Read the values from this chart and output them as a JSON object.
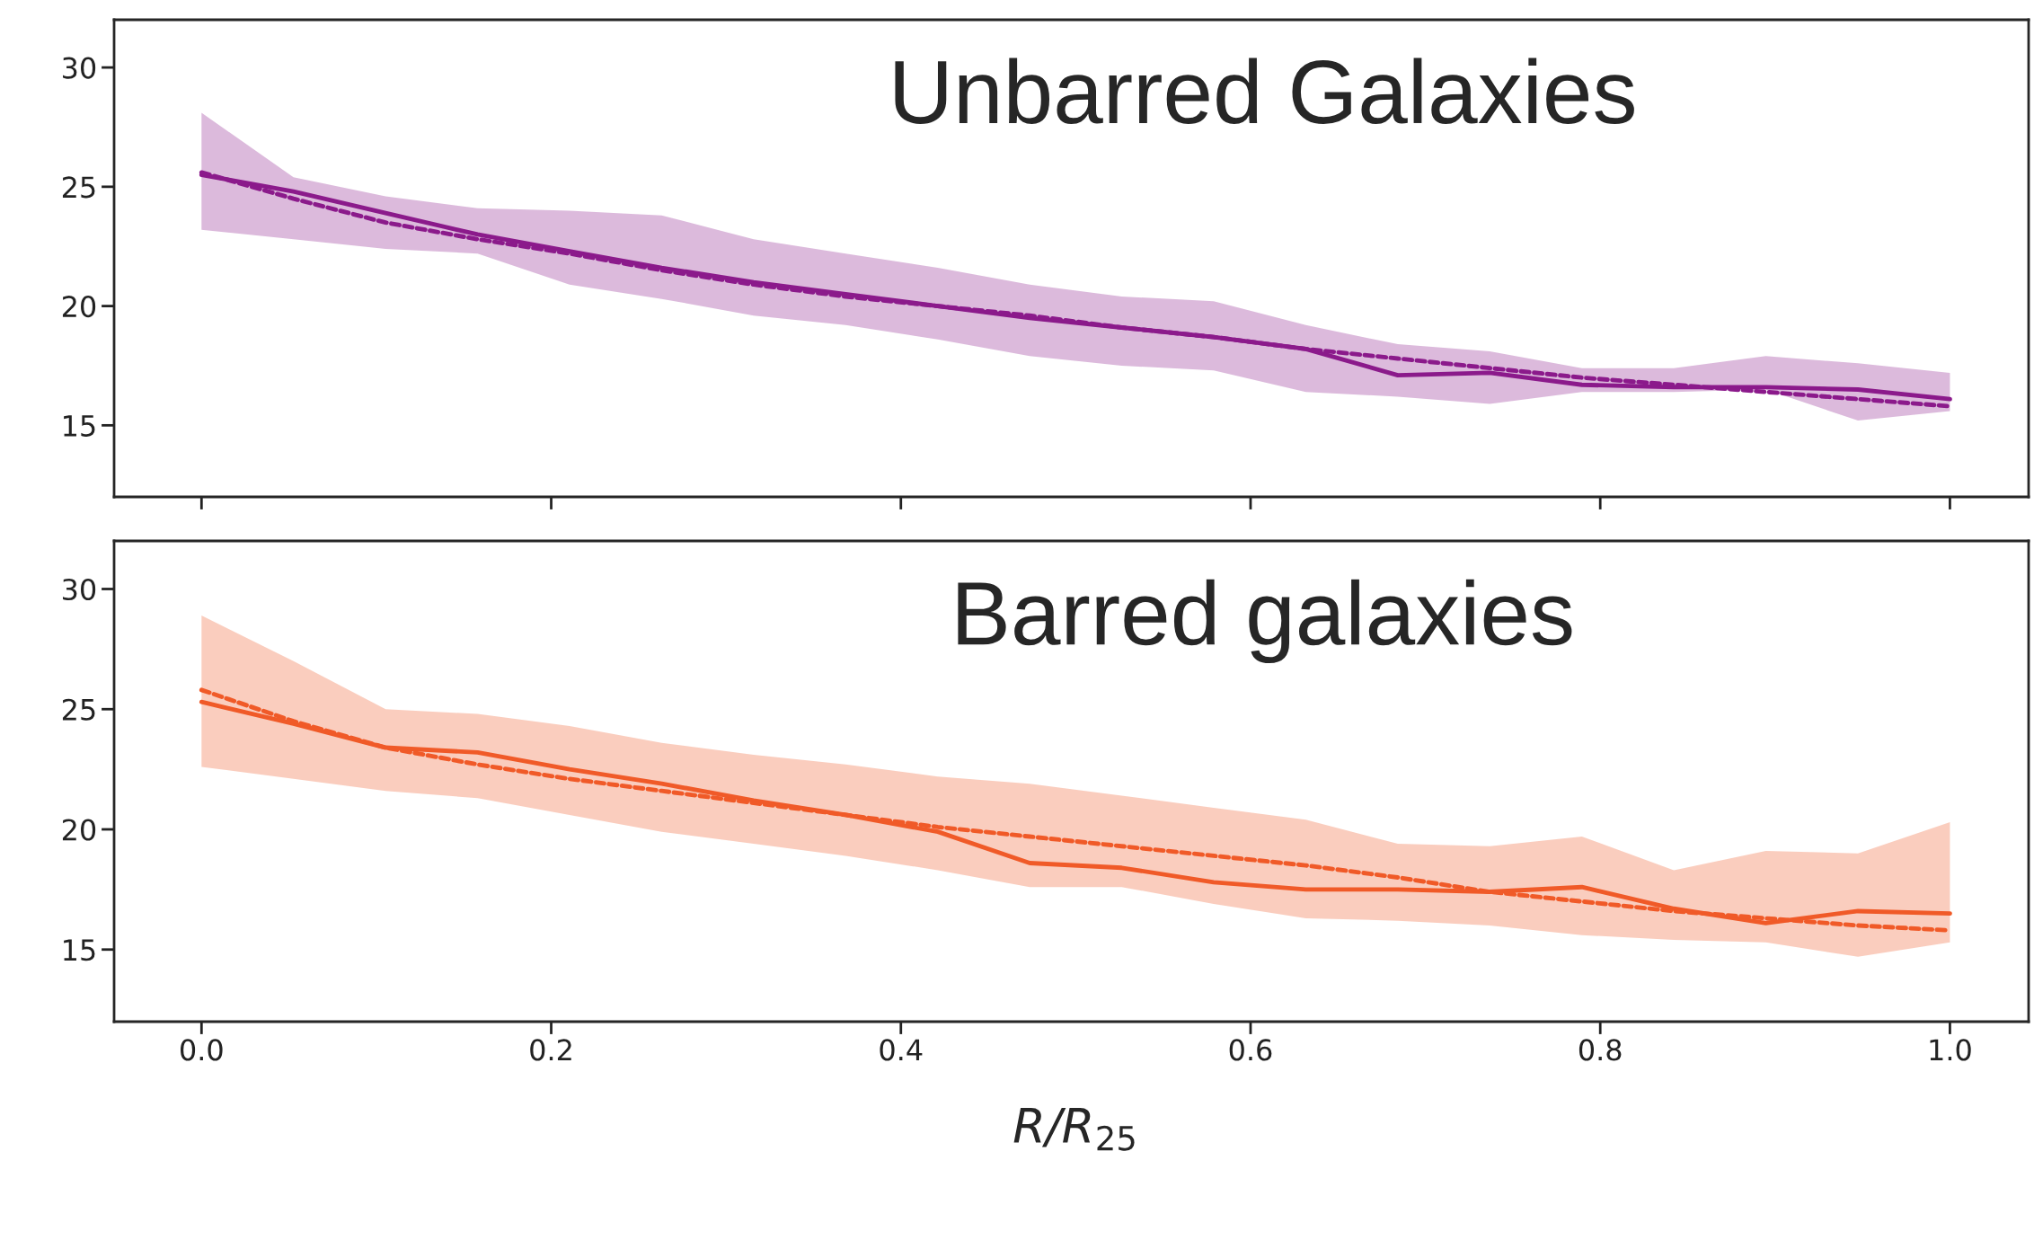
{
  "chart_data": [
    {
      "type": "line",
      "annotations": [
        "Unbarred Galaxies"
      ],
      "xlim": [
        -0.05,
        1.045
      ],
      "ylim": [
        12,
        32
      ],
      "xticks": [
        0.0,
        0.2,
        0.4,
        0.6,
        0.8,
        1.0
      ],
      "yticks": [
        15,
        20,
        25,
        30
      ],
      "tick_labels": "y",
      "grid": false,
      "legend": false,
      "x": [
        0,
        0.0526,
        0.1053,
        0.1579,
        0.2105,
        0.2632,
        0.3158,
        0.3684,
        0.4211,
        0.4737,
        0.5263,
        0.5789,
        0.6316,
        0.6842,
        0.7368,
        0.7895,
        0.8421,
        0.8947,
        0.9474,
        1.0
      ],
      "series": [
        {
          "color": "#8b1a8b",
          "line_style": "solid",
          "values": [
            25.5,
            24.8,
            23.9,
            23.0,
            22.3,
            21.6,
            21.0,
            20.5,
            20.0,
            19.5,
            19.1,
            18.7,
            18.2,
            17.1,
            17.2,
            16.7,
            16.6,
            16.6,
            16.5,
            16.1
          ],
          "upper": [
            28.1,
            25.4,
            24.6,
            24.1,
            24.0,
            23.8,
            22.8,
            22.2,
            21.6,
            20.9,
            20.4,
            20.2,
            19.2,
            18.4,
            18.1,
            17.4,
            17.4,
            17.9,
            17.6,
            17.2
          ],
          "lower": [
            23.2,
            22.8,
            22.4,
            22.2,
            20.9,
            20.3,
            19.6,
            19.2,
            18.6,
            17.9,
            17.5,
            17.3,
            16.4,
            16.2,
            15.9,
            16.4,
            16.4,
            16.5,
            15.2,
            15.6
          ]
        },
        {
          "color": "#8b1a8b",
          "line_style": "dashed",
          "values": [
            25.6,
            24.5,
            23.5,
            22.8,
            22.2,
            21.5,
            20.9,
            20.4,
            20.0,
            19.6,
            19.1,
            18.7,
            18.2,
            17.8,
            17.4,
            17.0,
            16.7,
            16.4,
            16.1,
            15.8
          ]
        }
      ]
    },
    {
      "type": "line",
      "annotations": [
        "Barred galaxies"
      ],
      "xlabel": "R/R$_{25}$",
      "xlim": [
        -0.05,
        1.045
      ],
      "ylim": [
        12,
        32
      ],
      "xticks": [
        {
          "value": 0,
          "label": "0.0"
        },
        0.2,
        0.4,
        0.6,
        0.8,
        {
          "value": 1,
          "label": "1.0"
        }
      ],
      "yticks": [
        15,
        20,
        25,
        30
      ],
      "grid": false,
      "legend": false,
      "x": [
        0,
        0.0526,
        0.1053,
        0.1579,
        0.2105,
        0.2632,
        0.3158,
        0.3684,
        0.4211,
        0.4737,
        0.5263,
        0.5789,
        0.6316,
        0.6842,
        0.7368,
        0.7895,
        0.8421,
        0.8947,
        0.9474,
        1.0
      ],
      "series": [
        {
          "color": "#f05a28",
          "line_style": "solid",
          "values": [
            25.3,
            24.4,
            23.4,
            23.2,
            22.5,
            21.9,
            21.2,
            20.6,
            19.9,
            18.6,
            18.4,
            17.8,
            17.5,
            17.5,
            17.4,
            17.6,
            16.7,
            16.1,
            16.6,
            16.5
          ],
          "upper": [
            28.9,
            27.0,
            25.0,
            24.8,
            24.3,
            23.6,
            23.1,
            22.7,
            22.2,
            21.9,
            21.4,
            20.9,
            20.4,
            19.4,
            19.3,
            19.7,
            18.3,
            19.1,
            19.0,
            20.3
          ],
          "lower": [
            22.6,
            22.1,
            21.6,
            21.3,
            20.6,
            19.9,
            19.4,
            18.9,
            18.3,
            17.6,
            17.6,
            16.9,
            16.3,
            16.2,
            16.0,
            15.6,
            15.4,
            15.3,
            14.7,
            15.3
          ]
        },
        {
          "color": "#f05a28",
          "line_style": "dashed",
          "values": [
            25.8,
            24.5,
            23.4,
            22.7,
            22.1,
            21.6,
            21.1,
            20.6,
            20.1,
            19.7,
            19.3,
            18.9,
            18.5,
            18.0,
            17.4,
            17.0,
            16.6,
            16.3,
            16.0,
            15.8
          ]
        }
      ]
    }
  ]
}
